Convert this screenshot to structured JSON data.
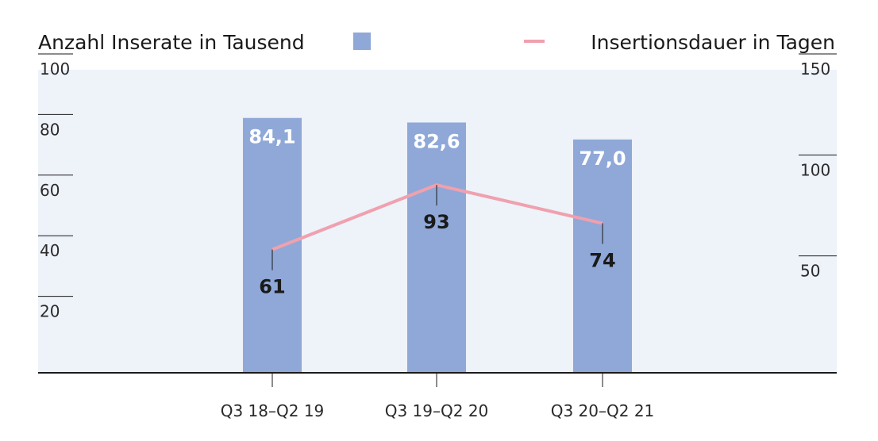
{
  "chart_data": {
    "type": "bar",
    "categories": [
      "Q3 18–Q2 19",
      "Q3 19–Q2 20",
      "Q3 20–Q2 21"
    ],
    "series": [
      {
        "name": "Anzahl Inserate in Tausend",
        "type": "bar",
        "axis": "left",
        "values": [
          84.1,
          82.6,
          77.0
        ],
        "labels": [
          "84,1",
          "82,6",
          "77,0"
        ],
        "color": "#8fa8d8"
      },
      {
        "name": "Insertionsdauer in Tagen",
        "type": "line",
        "axis": "right",
        "values": [
          61,
          93,
          74
        ],
        "labels": [
          "61",
          "93",
          "74"
        ],
        "color": "#f0a0ae"
      }
    ],
    "y_left": {
      "ticks": [
        20,
        40,
        60,
        80,
        100
      ],
      "ylim": [
        0,
        100
      ]
    },
    "y_right": {
      "ticks": [
        50,
        100,
        150
      ],
      "ylim": [
        0,
        150
      ]
    },
    "legend": [
      "Anzahl Inserate in Tausend",
      "Insertionsdauer in Tagen"
    ],
    "background": "#eef2f9"
  }
}
